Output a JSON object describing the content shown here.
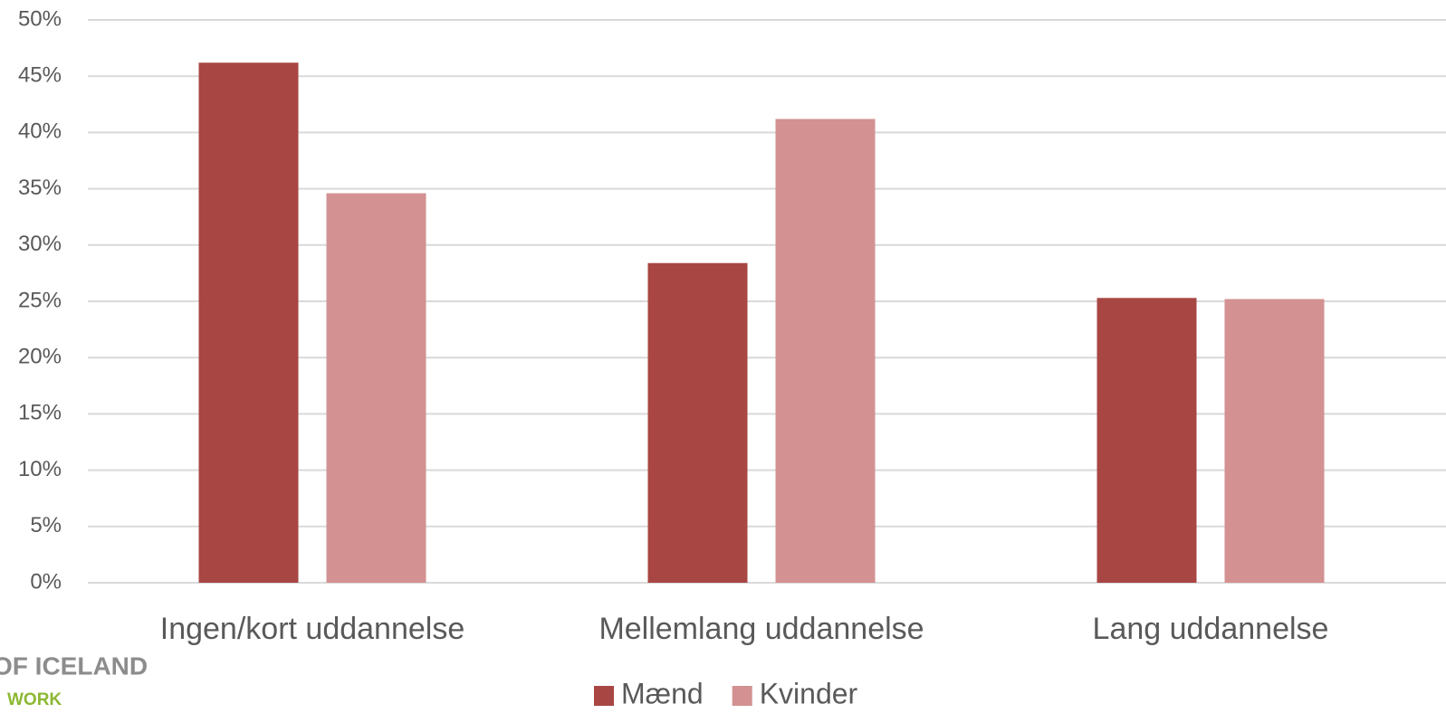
{
  "chart_data": {
    "type": "bar",
    "categories": [
      "Ingen/kort uddannelse",
      "Mellemlang uddannelse",
      "Lang uddannelse"
    ],
    "series": [
      {
        "name": "Mænd",
        "color": "#a84644",
        "values": [
          46.2,
          28.4,
          25.3
        ]
      },
      {
        "name": "Kvinder",
        "color": "#d39191",
        "values": [
          34.6,
          41.2,
          25.2
        ]
      }
    ],
    "ylim": [
      0,
      50
    ],
    "yticks": [
      {
        "value": 0,
        "label": "0%"
      },
      {
        "value": 5,
        "label": "5%"
      },
      {
        "value": 10,
        "label": "10%"
      },
      {
        "value": 15,
        "label": "15%"
      },
      {
        "value": 20,
        "label": "20%"
      },
      {
        "value": 25,
        "label": "25%"
      },
      {
        "value": 30,
        "label": "30%"
      },
      {
        "value": 35,
        "label": "35%"
      },
      {
        "value": 40,
        "label": "40%"
      },
      {
        "value": 45,
        "label": "45%"
      },
      {
        "value": 50,
        "label": "50%"
      }
    ],
    "grid": true,
    "legend": "bottom",
    "annotations": [
      "OF ICELAND",
      "WORK"
    ]
  }
}
